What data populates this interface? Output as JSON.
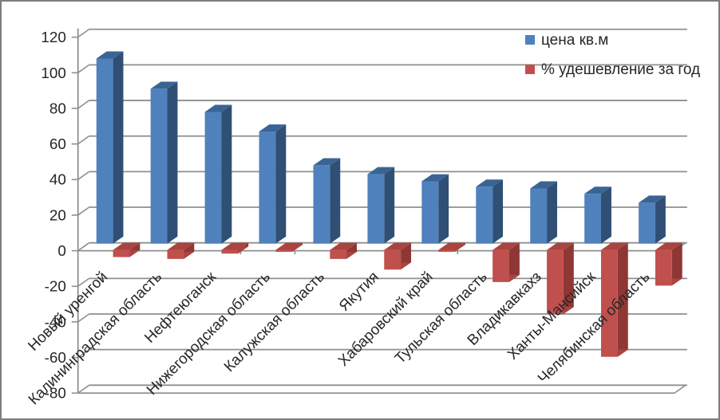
{
  "window": {
    "background": "#ffffff",
    "frame_border_color": "#7e7e7e"
  },
  "chart_data": {
    "type": "bar",
    "projection": "3d-clustered-column",
    "title": "",
    "xlabel": "",
    "ylabel": "",
    "categories": [
      "Новый уренгой",
      "Калининградская область",
      "Нефтеюганск",
      "Нижегородская область",
      "Калужская область",
      "Якутия",
      "Хабаровский край",
      "Тульская область",
      "Владикавкахз",
      "Ханты-Мансийск",
      "Челябинская область"
    ],
    "series": [
      {
        "name": "цена кв.м",
        "color": "#4F81BD",
        "color_side": "#2F4F74",
        "color_top": "#3A6494",
        "values": [
          104,
          87,
          74,
          63,
          44,
          39,
          35,
          32,
          31,
          28,
          23
        ]
      },
      {
        "name": "% удешевление за год",
        "color": "#C0504D",
        "color_side": "#8E3734",
        "color_top": "#AA4441",
        "values": [
          -4,
          -5,
          -2,
          -1,
          -5,
          -11,
          -1,
          -18,
          -36,
          -60,
          -20
        ]
      }
    ],
    "ylim": [
      -80,
      120
    ],
    "ytick_step": 20,
    "ytick_labels": [
      "120",
      "100",
      "80",
      "60",
      "40",
      "20",
      "0",
      "-20",
      "-40",
      "-60",
      "-80"
    ],
    "grid": true,
    "gridline_color": "#8f8f8f",
    "axis_color": "#8f8f8f",
    "text_color": "#262626",
    "legend_position": "top-right",
    "category_label_rotation_deg": -45
  }
}
